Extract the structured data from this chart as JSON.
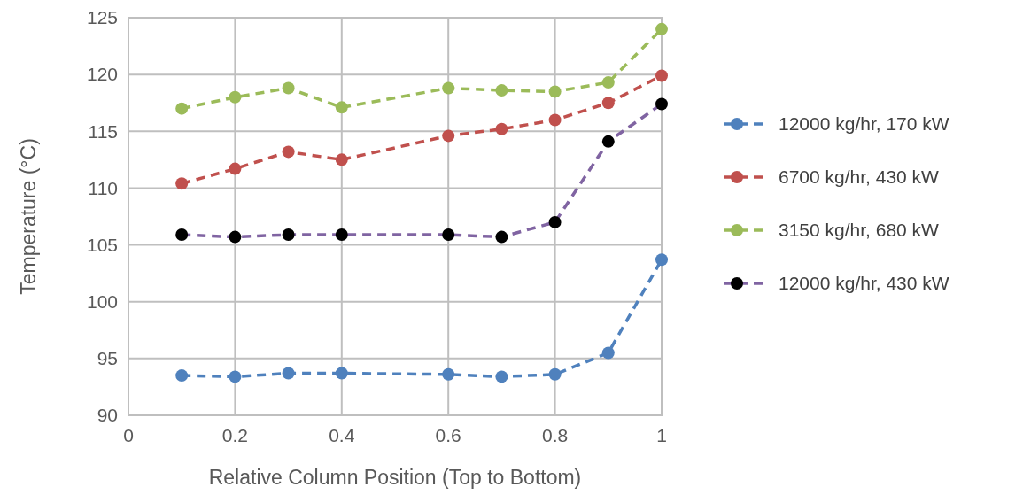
{
  "chart_data": {
    "type": "line",
    "xlabel": "Relative Column  Position (Top to Bottom)",
    "ylabel": "Temperature (°C)",
    "x": [
      0.1,
      0.2,
      0.3,
      0.4,
      0.6,
      0.7,
      0.8,
      0.9,
      1
    ],
    "xlim": [
      0,
      1
    ],
    "xticks": [
      0,
      0.2,
      0.4,
      0.6,
      0.8,
      1
    ],
    "ylim": [
      90,
      125
    ],
    "yticks": [
      90,
      95,
      100,
      105,
      110,
      115,
      120,
      125
    ],
    "grid": true,
    "legend": "right",
    "marker": "circle",
    "line_style": "dashed",
    "series": [
      {
        "name": "12000 kg/hr, 170 kW",
        "color": "#4f81bd",
        "values": [
          93.5,
          93.4,
          93.7,
          93.7,
          93.6,
          93.4,
          93.6,
          95.5,
          103.7
        ]
      },
      {
        "name": "6700 kg/hr, 430 kW",
        "color": "#c0504d",
        "values": [
          110.4,
          111.7,
          113.2,
          112.5,
          114.6,
          115.2,
          116.0,
          117.5,
          119.9
        ]
      },
      {
        "name": "3150 kg/hr, 680 kW",
        "color": "#9bbb59",
        "values": [
          117.0,
          118.0,
          118.8,
          117.1,
          118.8,
          118.6,
          118.5,
          119.3,
          124.0
        ]
      },
      {
        "name": "12000 kg/hr, 430 kW",
        "color": "#8064a2",
        "colors": [
          "#000000",
          "#000000",
          "#000000",
          "#000000",
          "#000000",
          "#000000",
          "#000000",
          "#000000",
          "#000000"
        ],
        "values": [
          105.9,
          105.7,
          105.9,
          105.9,
          105.9,
          105.7,
          107.0,
          114.1,
          117.4
        ]
      }
    ]
  }
}
